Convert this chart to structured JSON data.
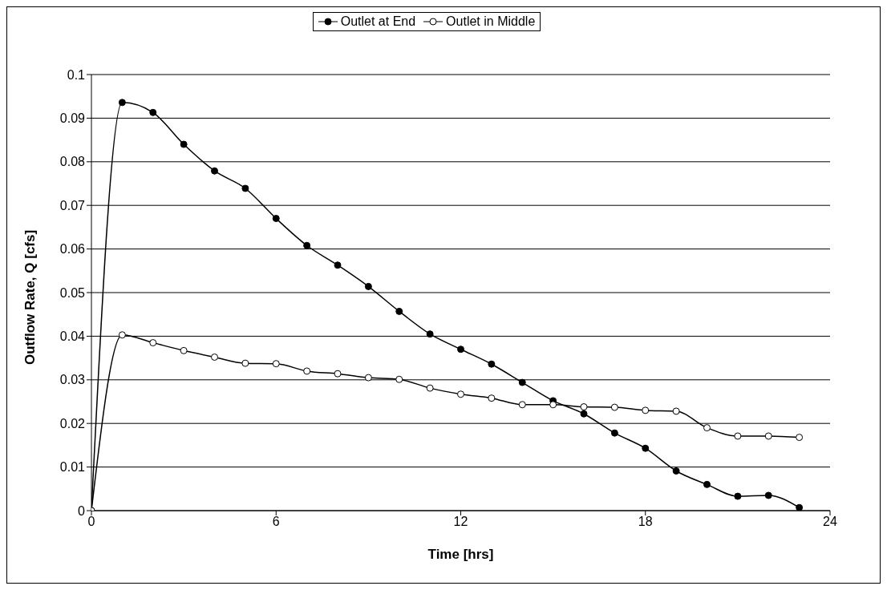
{
  "chart_data": {
    "type": "line",
    "xlabel": "Time [hrs]",
    "ylabel": "Outflow Rate, Q [cfs]",
    "x": [
      0,
      1,
      2,
      3,
      4,
      5,
      6,
      7,
      8,
      9,
      10,
      11,
      12,
      13,
      14,
      15,
      16,
      17,
      18,
      19,
      20,
      21,
      22,
      23
    ],
    "series": [
      {
        "name": "Outlet at End",
        "color": "#000000",
        "values": [
          0,
          0.0936,
          0.0913,
          0.084,
          0.0779,
          0.0739,
          0.067,
          0.0608,
          0.0563,
          0.0514,
          0.0457,
          0.0405,
          0.037,
          0.0336,
          0.0294,
          0.0252,
          0.0222,
          0.0178,
          0.0143,
          0.0091,
          0.006,
          0.0033,
          0.0035,
          0.0007
        ]
      },
      {
        "name": "Outlet in Middle",
        "color": "#000000",
        "values": [
          0,
          0.0403,
          0.0385,
          0.0367,
          0.0352,
          0.0338,
          0.0337,
          0.032,
          0.0314,
          0.0305,
          0.0301,
          0.0281,
          0.0267,
          0.0258,
          0.0243,
          0.0243,
          0.0238,
          0.0237,
          0.023,
          0.0228,
          0.019,
          0.0171,
          0.0171,
          0.0168
        ]
      }
    ],
    "xlim": [
      0,
      24
    ],
    "xticks": [
      0,
      6,
      12,
      18,
      24
    ],
    "ylim": [
      0,
      0.1
    ],
    "yticks": [
      0,
      0.01,
      0.02,
      0.03,
      0.04,
      0.05,
      0.06,
      0.07,
      0.08,
      0.09,
      0.1
    ],
    "grid": "y",
    "legend": "top",
    "marker": "circle",
    "line_style": "solid"
  }
}
